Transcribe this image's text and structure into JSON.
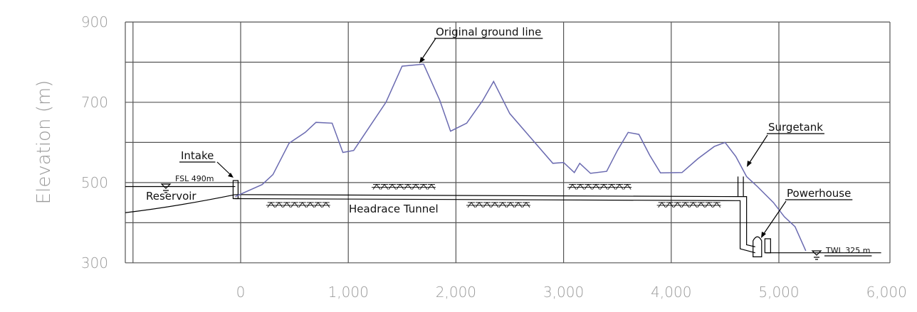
{
  "chart_data": {
    "type": "line",
    "ylabel": "Elevation  (m)",
    "xlabel": "",
    "x_ticks": [
      "0",
      "1,000",
      "2,000",
      "3,000",
      "4,000",
      "5,000",
      "6,000"
    ],
    "y_ticks": [
      "900",
      "700",
      "500",
      "300"
    ],
    "xlim": [
      -1500,
      6000
    ],
    "ylim": [
      300,
      900
    ],
    "grid": true,
    "colors": {
      "ground_line": "#6a6ab0",
      "grid": "#555555",
      "ticks": "#9a9a9a"
    },
    "series": [
      {
        "name": "Original ground line",
        "points": [
          [
            -50,
            465
          ],
          [
            200,
            495
          ],
          [
            300,
            520
          ],
          [
            450,
            598
          ],
          [
            600,
            625
          ],
          [
            700,
            650
          ],
          [
            850,
            648
          ],
          [
            950,
            575
          ],
          [
            1050,
            580
          ],
          [
            1200,
            640
          ],
          [
            1350,
            700
          ],
          [
            1500,
            790
          ],
          [
            1700,
            795
          ],
          [
            1850,
            705
          ],
          [
            1950,
            628
          ],
          [
            2100,
            648
          ],
          [
            2250,
            705
          ],
          [
            2350,
            752
          ],
          [
            2500,
            672
          ],
          [
            2700,
            610
          ],
          [
            2900,
            548
          ],
          [
            3000,
            550
          ],
          [
            3100,
            525
          ],
          [
            3150,
            548
          ],
          [
            3250,
            523
          ],
          [
            3400,
            528
          ],
          [
            3500,
            580
          ],
          [
            3600,
            625
          ],
          [
            3700,
            620
          ],
          [
            3800,
            568
          ],
          [
            3900,
            524
          ],
          [
            4100,
            525
          ],
          [
            4250,
            560
          ],
          [
            4400,
            590
          ],
          [
            4500,
            600
          ],
          [
            4600,
            565
          ],
          [
            4700,
            515
          ],
          [
            4800,
            490
          ],
          [
            4950,
            450
          ],
          [
            5050,
            415
          ],
          [
            5150,
            390
          ],
          [
            5250,
            330
          ]
        ]
      }
    ],
    "annotations": {
      "original_ground_line": "Original ground line",
      "intake": "Intake",
      "fsl": "FSL 490m",
      "reservoir": "Reservoir",
      "headrace_tunnel": "Headrace Tunnel",
      "surgetank": "Surgetank",
      "powerhouse": "Powerhouse",
      "twl": "TWL 325 m"
    }
  }
}
